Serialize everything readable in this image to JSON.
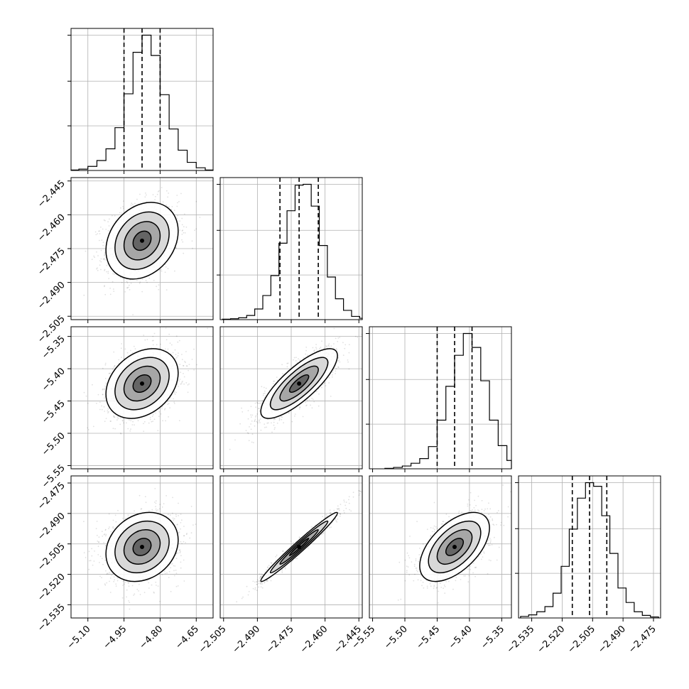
{
  "chart_data": {
    "type": "corner",
    "description_grid": "4 by 4 lower-triangular corner plot with 1-D histograms on the diagonal and 2-D scatter, density and contour panels below",
    "quantiles": [
      0.16,
      0.5,
      0.84
    ],
    "grid": true,
    "params": [
      {
        "range": [
          -5.17,
          -4.58
        ],
        "ticks": [
          -5.1,
          -4.95,
          -4.8,
          -4.65
        ],
        "tick_labels": [
          "−5.10",
          "−4.95",
          "−4.80",
          "−4.65"
        ],
        "mean": -4.875,
        "sigma": 0.075,
        "quantile_values": [
          -4.95,
          -4.875,
          -4.8
        ],
        "hist_counts": [
          1,
          3,
          9,
          22,
          48,
          95,
          170,
          262,
          300,
          255,
          168,
          92,
          45,
          18,
          6,
          1
        ]
      },
      {
        "range": [
          -2.5065,
          -2.4435
        ],
        "ticks": [
          -2.505,
          -2.49,
          -2.475,
          -2.46,
          -2.445
        ],
        "tick_labels": [
          "−2.505",
          "−2.490",
          "−2.475",
          "−2.460",
          "−2.445"
        ],
        "mean": -2.4715,
        "sigma": 0.0085,
        "quantile_values": [
          -2.48,
          -2.4715,
          -2.463
        ],
        "hist_counts": [
          1,
          2,
          4,
          9,
          23,
          52,
          95,
          165,
          235,
          290,
          292,
          245,
          160,
          92,
          45,
          20,
          7,
          3,
          1
        ]
      },
      {
        "range": [
          -5.555,
          -5.335
        ],
        "ticks": [
          -5.55,
          -5.5,
          -5.45,
          -5.4,
          -5.35
        ],
        "tick_labels": [
          "−5.55",
          "−5.50",
          "−5.45",
          "−5.40",
          "−5.35"
        ],
        "mean": -5.423,
        "sigma": 0.027,
        "quantile_values": [
          -5.45,
          -5.423,
          -5.396
        ],
        "hist_counts": [
          1,
          3,
          6,
          12,
          22,
          48,
          105,
          178,
          245,
          292,
          262,
          190,
          105,
          50,
          18,
          5
        ]
      },
      {
        "range": [
          -2.5415,
          -2.4715
        ],
        "ticks": [
          -2.535,
          -2.52,
          -2.505,
          -2.49,
          -2.475
        ],
        "tick_labels": [
          "−2.535",
          "−2.520",
          "−2.505",
          "−2.490",
          "−2.475"
        ],
        "mean": -2.5065,
        "sigma": 0.0085,
        "quantile_values": [
          -2.515,
          -2.5065,
          -2.498
        ],
        "hist_counts": [
          3,
          6,
          12,
          22,
          48,
          100,
          172,
          232,
          262,
          255,
          198,
          125,
          58,
          30,
          12,
          5,
          2
        ]
      }
    ],
    "correlations": {
      "1-0": 0.25,
      "2-0": 0.3,
      "2-1": 0.8,
      "3-0": 0.2,
      "3-1": 0.98,
      "3-2": 0.55
    }
  }
}
